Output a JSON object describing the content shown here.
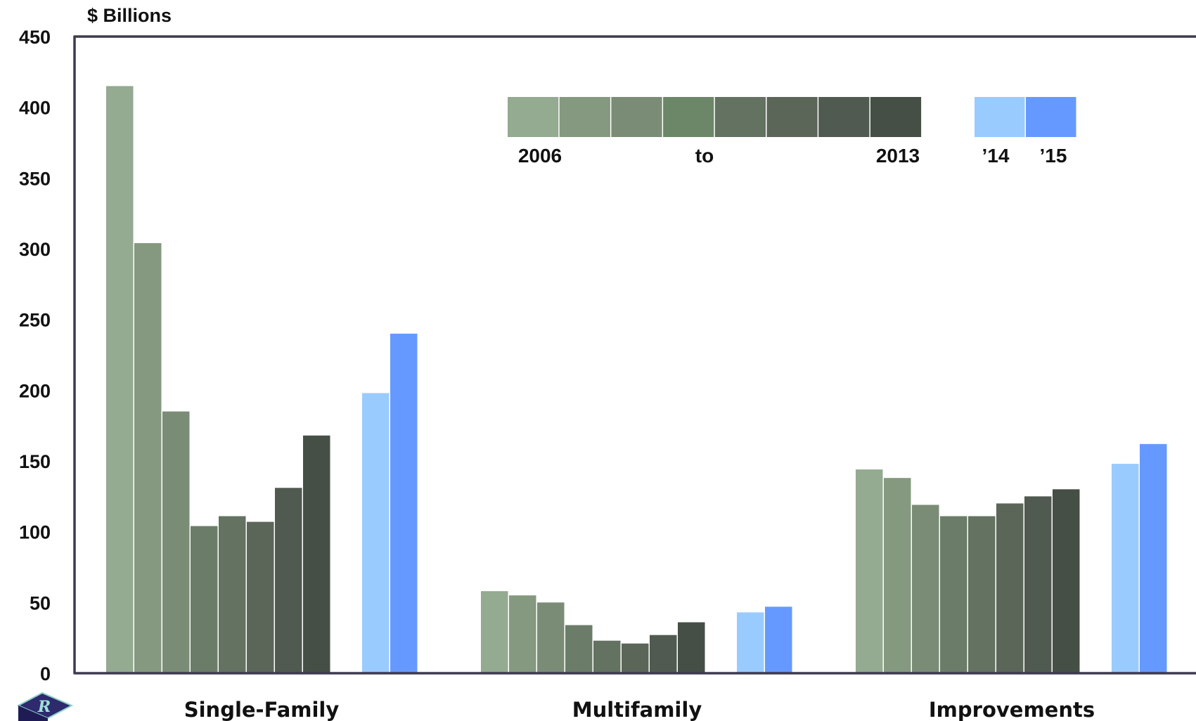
{
  "chart_data": {
    "type": "bar",
    "ylabel": "$ Billions",
    "ylim": [
      0,
      450
    ],
    "yticks": [
      "0",
      "50",
      "100",
      "150",
      "200",
      "250",
      "300",
      "350",
      "400",
      "450"
    ],
    "categories": [
      "Single-Family",
      "Multifamily",
      "Improvements"
    ],
    "series": [
      {
        "values": [
          415,
          58,
          144
        ],
        "color": "#94aa91"
      },
      {
        "values": [
          304,
          55,
          138
        ],
        "color": "#84997f"
      },
      {
        "values": [
          185,
          50,
          119
        ],
        "color": "#7a8c76"
      },
      {
        "values": [
          104,
          34,
          111
        ],
        "color": "#6b7d68"
      },
      {
        "values": [
          111,
          23,
          111
        ],
        "color": "#637261"
      },
      {
        "values": [
          107,
          21,
          120
        ],
        "color": "#5b6659"
      },
      {
        "values": [
          131,
          27,
          125
        ],
        "color": "#505a50"
      },
      {
        "values": [
          168,
          36,
          130
        ],
        "color": "#464f46"
      },
      {
        "values": [
          198,
          43,
          148
        ],
        "color": "#99cbff"
      },
      {
        "values": [
          240,
          47,
          162
        ],
        "color": "#6699ff"
      }
    ],
    "legend": {
      "gradient_colors": [
        "#94aa91",
        "#84997f",
        "#7a8c76",
        "#6b8768",
        "#637261",
        "#5b6659",
        "#505a50",
        "#464f46"
      ],
      "recent_colors": [
        "#99cbff",
        "#6699ff"
      ],
      "labels": {
        "start": "2006",
        "middle": "to",
        "end": "2013",
        "y2014": "’14",
        "y2015": "’15"
      }
    },
    "axis_color": "#3e3a4f",
    "grid": false
  },
  "logo": {
    "letter": "R",
    "color": "#2d2a6e"
  }
}
